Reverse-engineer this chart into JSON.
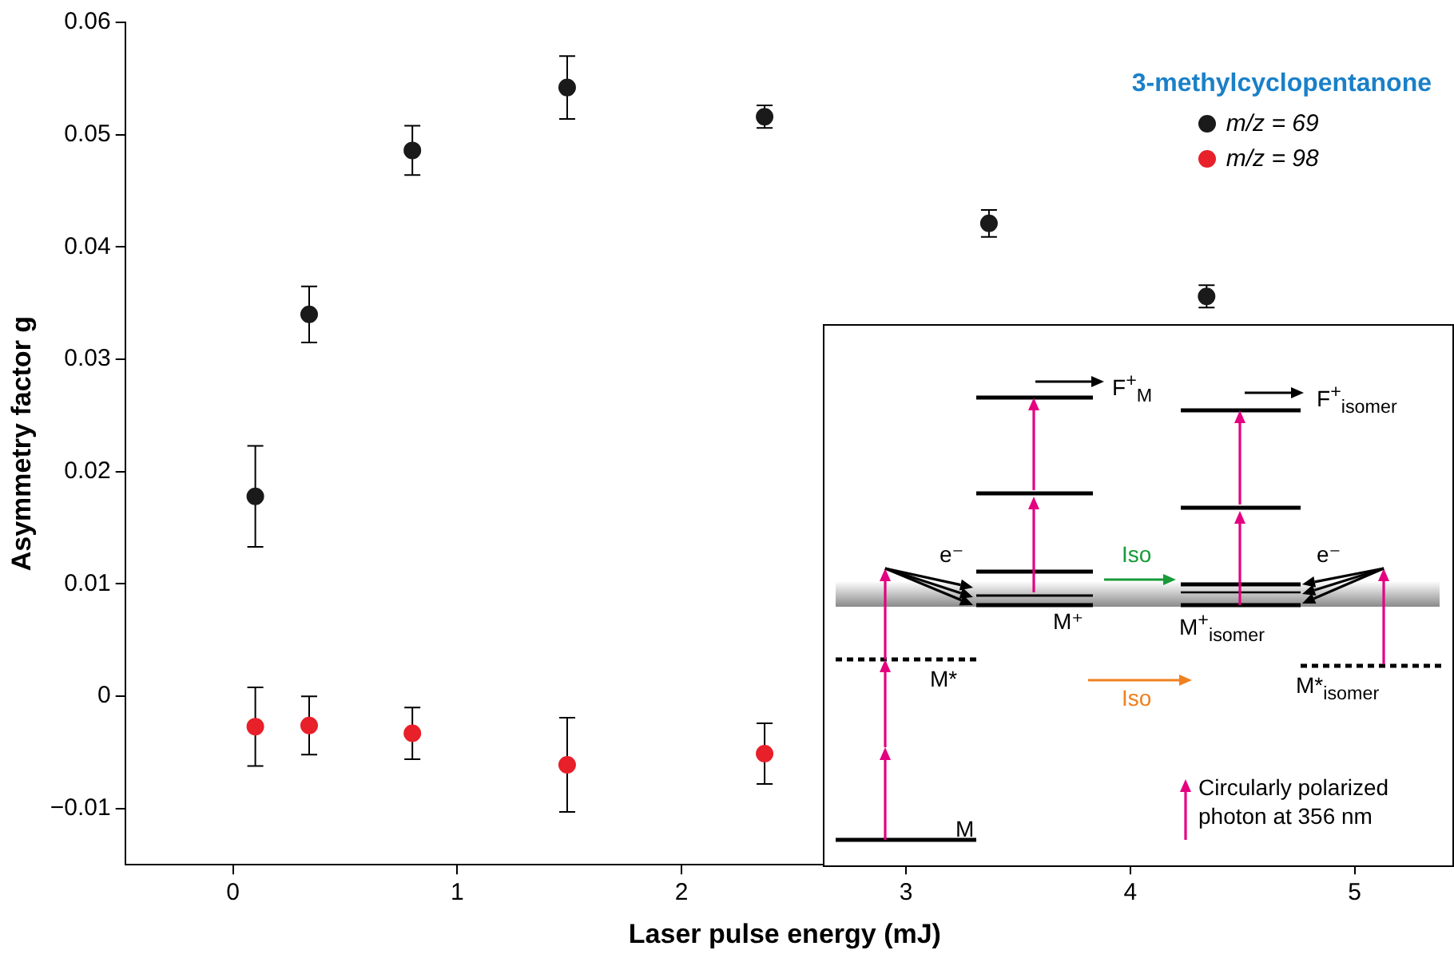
{
  "chart_data": {
    "type": "scatter",
    "xlabel": "Laser pulse energy (mJ)",
    "ylabel": "Asymmetry factor g",
    "legend_title": "3-methylcyclopentanone",
    "legend": "top right",
    "marker": "circle",
    "grid": false,
    "xlim": [
      -0.48,
      5.4
    ],
    "xticks": [
      0,
      1,
      2,
      3,
      4,
      5
    ],
    "ylim": [
      -0.015,
      0.06
    ],
    "yticks": [
      {
        "value": -0.01,
        "label": "−0.01"
      },
      0,
      0.01,
      0.02,
      0.03,
      0.04,
      0.05,
      0.06
    ],
    "series": [
      {
        "name": "m/z = 69",
        "color": "#1a1a1a",
        "x": [
          0.1,
          0.34,
          0.8,
          1.49,
          2.37,
          3.37,
          4.34
        ],
        "values": [
          0.0178,
          0.034,
          0.0486,
          0.0542,
          0.0516,
          0.0421,
          0.0356
        ],
        "errors": [
          0.0045,
          0.0025,
          0.0022,
          0.0028,
          0.001,
          0.0012,
          0.001
        ]
      },
      {
        "name": "m/z = 98",
        "color": "#e8202a",
        "x": [
          0.1,
          0.34,
          0.8,
          1.49,
          2.37
        ],
        "values": [
          -0.0027,
          -0.0026,
          -0.0033,
          -0.0061,
          -0.0051
        ],
        "errors": [
          0.0035,
          0.0026,
          0.0023,
          0.0042,
          0.0027
        ]
      }
    ],
    "annotations": [
      "F$^{+}$$_{M}$",
      "F$^{+}$$_{isomer}$",
      "e⁻",
      "Iso",
      "e⁻",
      "M⁺",
      "M$^{+}$$_{isomer}$",
      "M*",
      "Iso",
      "M*$_{isomer}$",
      "M",
      "Circularly polarized photon at 356 nm"
    ]
  }
}
